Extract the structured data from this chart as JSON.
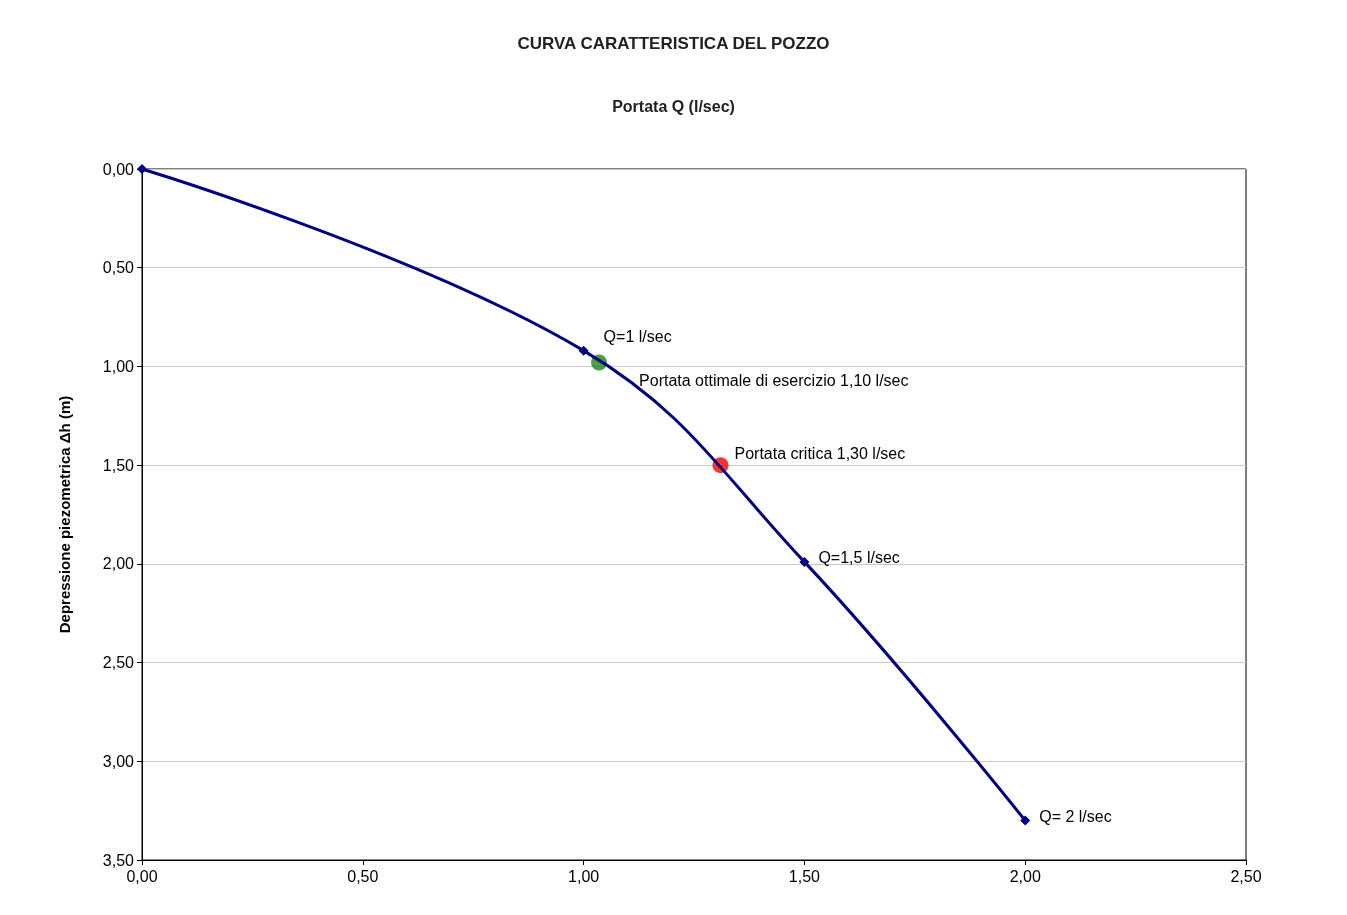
{
  "chart_data": {
    "type": "line",
    "title": "CURVA CARATTERISTICA DEL POZZO",
    "xlabel": "Portata Q (l/sec)",
    "ylabel": "Depressione piezometrica Δh (m)",
    "x": [
      0,
      1,
      1.5,
      2
    ],
    "series": [
      {
        "color": "#000080",
        "marker": "diamond",
        "values": [
          0,
          0.92,
          1.99,
          3.3
        ]
      },
      {
        "type": "scatter",
        "color": "#1a8a1a",
        "marker": "circle",
        "x": [
          1.035
        ],
        "values": [
          0.98
        ]
      },
      {
        "type": "scatter",
        "color": "#ff0000",
        "marker": "circle",
        "x": [
          1.31
        ],
        "values": [
          1.5
        ]
      }
    ],
    "xlim": [
      0,
      2.5
    ],
    "ylim": [
      3.5,
      0
    ],
    "xticks": [
      {
        "value": 0,
        "label": "0,00"
      },
      {
        "value": 0.5,
        "label": "0,50"
      },
      {
        "value": 1,
        "label": "1,00"
      },
      {
        "value": 1.5,
        "label": "1,50"
      },
      {
        "value": 2,
        "label": "2,00"
      },
      {
        "value": 2.5,
        "label": "2,50"
      }
    ],
    "yticks": [
      {
        "value": 0,
        "label": "0,00"
      },
      {
        "value": 0.5,
        "label": "0,50"
      },
      {
        "value": 1,
        "label": "1,00"
      },
      {
        "value": 1.5,
        "label": "1,50"
      },
      {
        "value": 2,
        "label": "2,00"
      },
      {
        "value": 2.5,
        "label": "2,50"
      },
      {
        "value": 3,
        "label": "3,00"
      },
      {
        "value": 3.5,
        "label": "3,50"
      }
    ],
    "grid": "y",
    "annotations": [
      {
        "text": "Q=1 l/sec",
        "x": 1,
        "y": 0.92
      },
      {
        "text": "Portata ottimale di esercizio 1,10 l/sec",
        "x": 1.035,
        "y": 0.98
      },
      {
        "text": "Portata critica 1,30 l/sec",
        "x": 1.31,
        "y": 1.5
      },
      {
        "text": "Q=1,5 l/sec",
        "x": 1.5,
        "y": 1.99
      },
      {
        "text": "Q= 2 l/sec",
        "x": 2,
        "y": 3.3
      }
    ]
  }
}
